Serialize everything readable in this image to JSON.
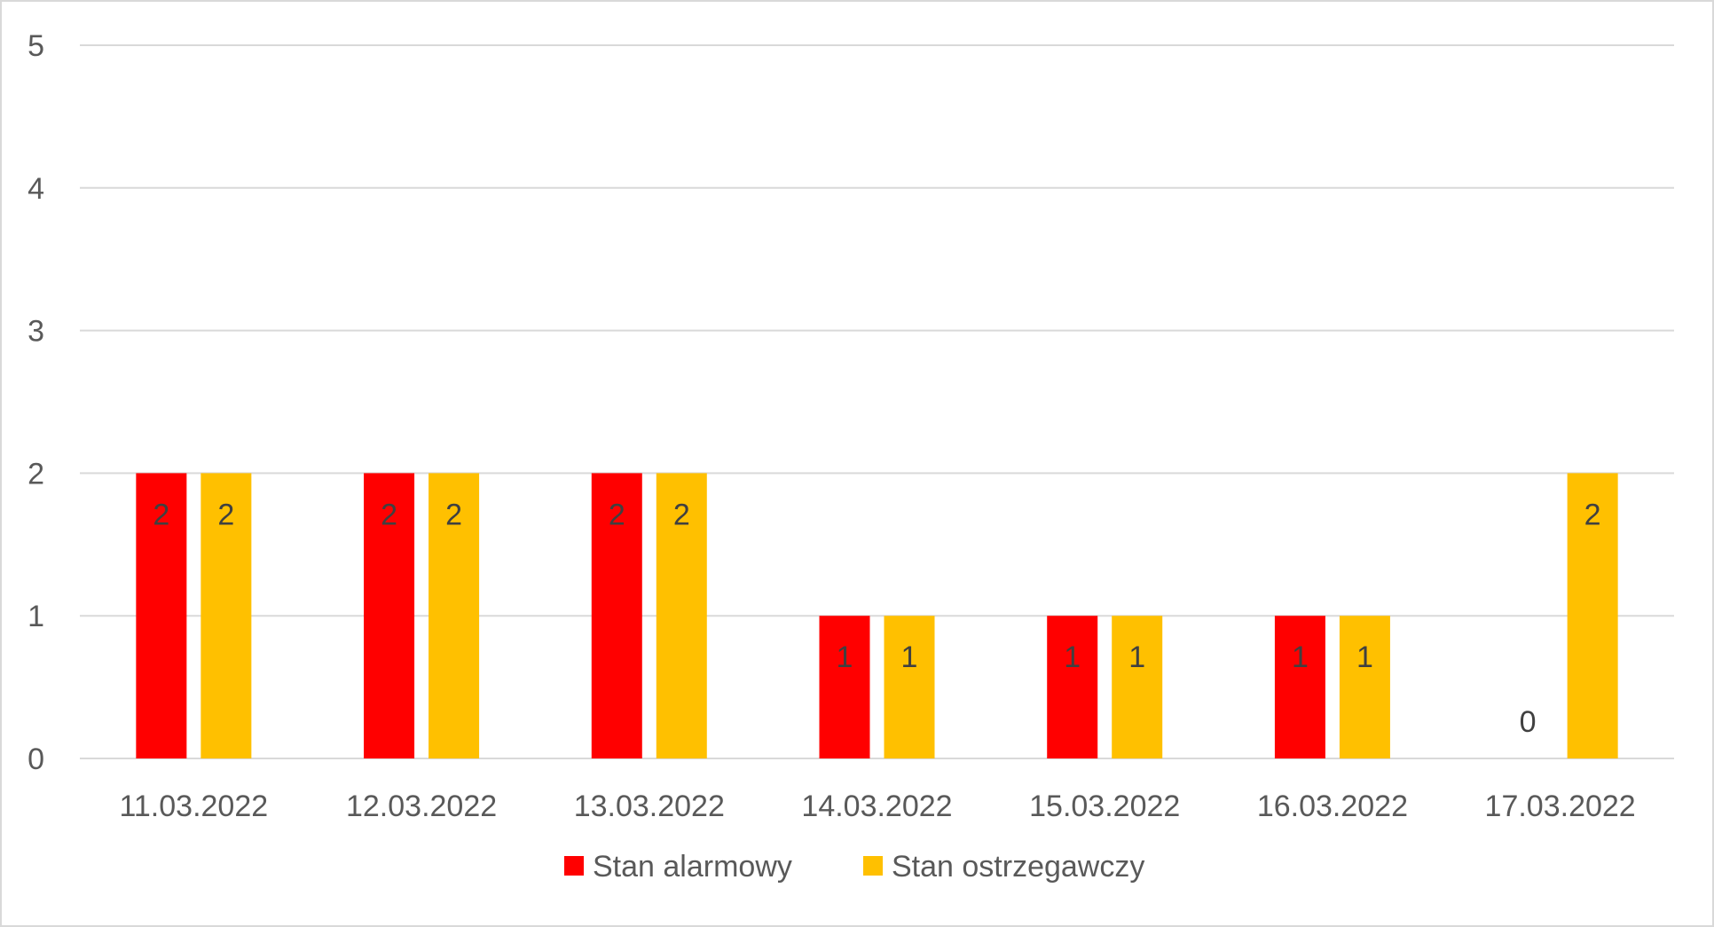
{
  "chart_data": {
    "type": "bar",
    "categories": [
      "11.03.2022",
      "12.03.2022",
      "13.03.2022",
      "14.03.2022",
      "15.03.2022",
      "16.03.2022",
      "17.03.2022"
    ],
    "series": [
      {
        "name": "Stan alarmowy",
        "color": "#ff0000",
        "values": [
          2,
          2,
          2,
          1,
          1,
          1,
          0
        ]
      },
      {
        "name": "Stan ostrzegawczy",
        "color": "#ffc000",
        "values": [
          2,
          2,
          2,
          1,
          1,
          1,
          2
        ]
      }
    ],
    "ylim": [
      0,
      5
    ],
    "yticks": [
      0,
      1,
      2,
      3,
      4,
      5
    ],
    "grid": true,
    "data_labels": true,
    "legend_position": "bottom",
    "title": "",
    "xlabel": "",
    "ylabel": ""
  }
}
